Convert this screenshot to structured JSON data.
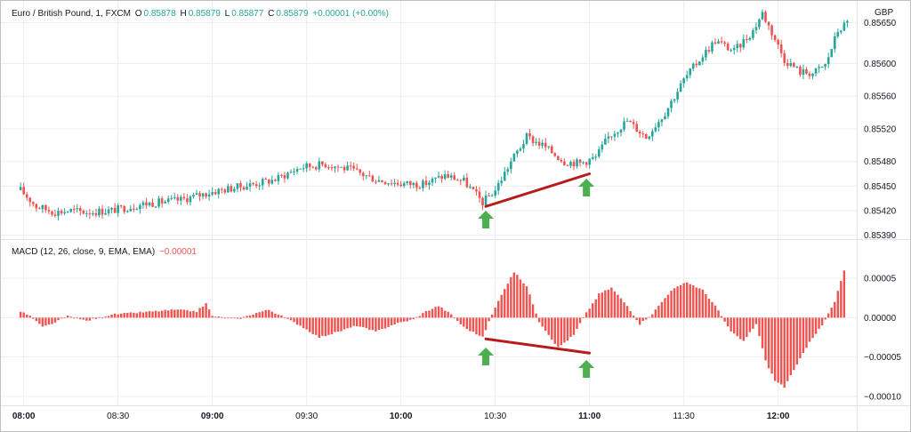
{
  "header": {
    "symbol": "Euro / British Pound, 1, FXCM",
    "open_label": "O",
    "open": "0.85878",
    "high_label": "H",
    "high": "0.85879",
    "low_label": "L",
    "low": "0.85877",
    "close_label": "C",
    "close": "0.85879",
    "change": "+0.00001 (+0.00%)",
    "currency": "GBP"
  },
  "macd_header": {
    "label": "MACD (12, 26, close, 9, EMA, EMA)",
    "value": "−0.00001"
  },
  "colors": {
    "up": "#26a69a",
    "down": "#ef5350",
    "trend_line": "#b71c1c",
    "arrow": "#4caf50",
    "grid": "#eeeeee"
  },
  "chart_data": [
    {
      "type": "candlestick",
      "title": "Euro / British Pound, 1, FXCM",
      "x_ticks": [
        "08:00",
        "08:30",
        "09:00",
        "09:30",
        "10:00",
        "10:30",
        "11:00",
        "11:30",
        "12:00"
      ],
      "y_ticks": [
        "0.85650",
        "0.85600",
        "0.85560",
        "0.85520",
        "0.85480",
        "0.85450",
        "0.85420",
        "0.85390"
      ],
      "ylim": [
        0.85385,
        0.85668
      ],
      "close_path": [
        [
          "07:59",
          0.85445
        ],
        [
          "08:04",
          0.85425
        ],
        [
          "08:10",
          0.85418
        ],
        [
          "08:15",
          0.8542
        ],
        [
          "08:20",
          0.85418
        ],
        [
          "08:28",
          0.8542
        ],
        [
          "08:38",
          0.85428
        ],
        [
          "08:50",
          0.85433
        ],
        [
          "09:00",
          0.85443
        ],
        [
          "09:10",
          0.8545
        ],
        [
          "09:20",
          0.85458
        ],
        [
          "09:28",
          0.85473
        ],
        [
          "09:36",
          0.85477
        ],
        [
          "09:44",
          0.8547
        ],
        [
          "09:52",
          0.85458
        ],
        [
          "10:00",
          0.85453
        ],
        [
          "10:07",
          0.85452
        ],
        [
          "10:14",
          0.85463
        ],
        [
          "10:20",
          0.85456
        ],
        [
          "10:26",
          0.8543
        ],
        [
          "10:30",
          0.85445
        ],
        [
          "10:35",
          0.8548
        ],
        [
          "10:40",
          0.8551
        ],
        [
          "10:45",
          0.855
        ],
        [
          "10:52",
          0.8548
        ],
        [
          "10:57",
          0.85478
        ],
        [
          "11:02",
          0.85485
        ],
        [
          "11:06",
          0.8551
        ],
        [
          "11:12",
          0.8553
        ],
        [
          "11:18",
          0.8551
        ],
        [
          "11:24",
          0.8554
        ],
        [
          "11:30",
          0.8558
        ],
        [
          "11:36",
          0.8561
        ],
        [
          "11:40",
          0.85628
        ],
        [
          "11:46",
          0.85615
        ],
        [
          "11:52",
          0.8564
        ],
        [
          "11:55",
          0.85662
        ],
        [
          "11:59",
          0.8563
        ],
        [
          "12:02",
          0.85605
        ],
        [
          "12:07",
          0.8559
        ],
        [
          "12:11",
          0.85588
        ],
        [
          "12:15",
          0.85598
        ],
        [
          "12:19",
          0.8564
        ],
        [
          "12:22",
          0.8565
        ]
      ],
      "trend_line": [
        [
          "10:27",
          0.85425
        ],
        [
          "11:00",
          0.85465
        ]
      ],
      "arrows_at": [
        "10:27",
        "10:59"
      ]
    },
    {
      "type": "bar",
      "title": "MACD (12, 26, close, 9, EMA, EMA)",
      "y_ticks": [
        "0.00005",
        "0.00000",
        "−0.00005",
        "−0.00010"
      ],
      "ylim": [
        -0.000108,
        7.5e-05
      ],
      "histogram_path": [
        [
          "07:59",
          8e-06
        ],
        [
          "08:02",
          2e-06
        ],
        [
          "08:06",
          -1.2e-05
        ],
        [
          "08:10",
          -6e-06
        ],
        [
          "08:14",
          2e-06
        ],
        [
          "08:20",
          -4e-06
        ],
        [
          "08:28",
          4e-06
        ],
        [
          "08:38",
          7e-06
        ],
        [
          "08:48",
          1e-05
        ],
        [
          "08:55",
          8e-06
        ],
        [
          "08:58",
          1.8e-05
        ],
        [
          "09:00",
          2e-06
        ],
        [
          "09:08",
          -2e-06
        ],
        [
          "09:14",
          6e-06
        ],
        [
          "09:18",
          1e-05
        ],
        [
          "09:22",
          2e-06
        ],
        [
          "09:28",
          -1e-05
        ],
        [
          "09:34",
          -2.5e-05
        ],
        [
          "09:40",
          -1.8e-05
        ],
        [
          "09:46",
          -1e-05
        ],
        [
          "09:52",
          -1.8e-05
        ],
        [
          "09:58",
          -8e-06
        ],
        [
          "10:04",
          -2e-06
        ],
        [
          "10:08",
          8e-06
        ],
        [
          "10:12",
          1.5e-05
        ],
        [
          "10:16",
          4e-06
        ],
        [
          "10:20",
          -1.2e-05
        ],
        [
          "10:26",
          -2.5e-05
        ],
        [
          "10:28",
          -5e-06
        ],
        [
          "10:32",
          3e-05
        ],
        [
          "10:36",
          5.8e-05
        ],
        [
          "10:40",
          4e-05
        ],
        [
          "10:44",
          -5e-06
        ],
        [
          "10:50",
          -3.8e-05
        ],
        [
          "10:55",
          -2.2e-05
        ],
        [
          "10:58",
          0.0
        ],
        [
          "11:03",
          3e-05
        ],
        [
          "11:07",
          3.8e-05
        ],
        [
          "11:12",
          1.5e-05
        ],
        [
          "11:16",
          -8e-06
        ],
        [
          "11:20",
          5e-06
        ],
        [
          "11:26",
          3.5e-05
        ],
        [
          "11:31",
          4.5e-05
        ],
        [
          "11:36",
          3.5e-05
        ],
        [
          "11:40",
          1.5e-05
        ],
        [
          "11:45",
          -1.8e-05
        ],
        [
          "11:49",
          -3e-05
        ],
        [
          "11:53",
          -8e-06
        ],
        [
          "11:56",
          -5.5e-05
        ],
        [
          "11:59",
          -8e-05
        ],
        [
          "12:02",
          -8.8e-05
        ],
        [
          "12:06",
          -6e-05
        ],
        [
          "12:10",
          -3e-05
        ],
        [
          "12:14",
          -1e-05
        ],
        [
          "12:18",
          2e-05
        ],
        [
          "12:21",
          6e-05
        ]
      ],
      "trend_line": [
        [
          "10:27",
          -2.7e-05
        ],
        [
          "11:00",
          -4.5e-05
        ]
      ],
      "arrows_at": [
        "10:27",
        "10:59"
      ]
    }
  ]
}
